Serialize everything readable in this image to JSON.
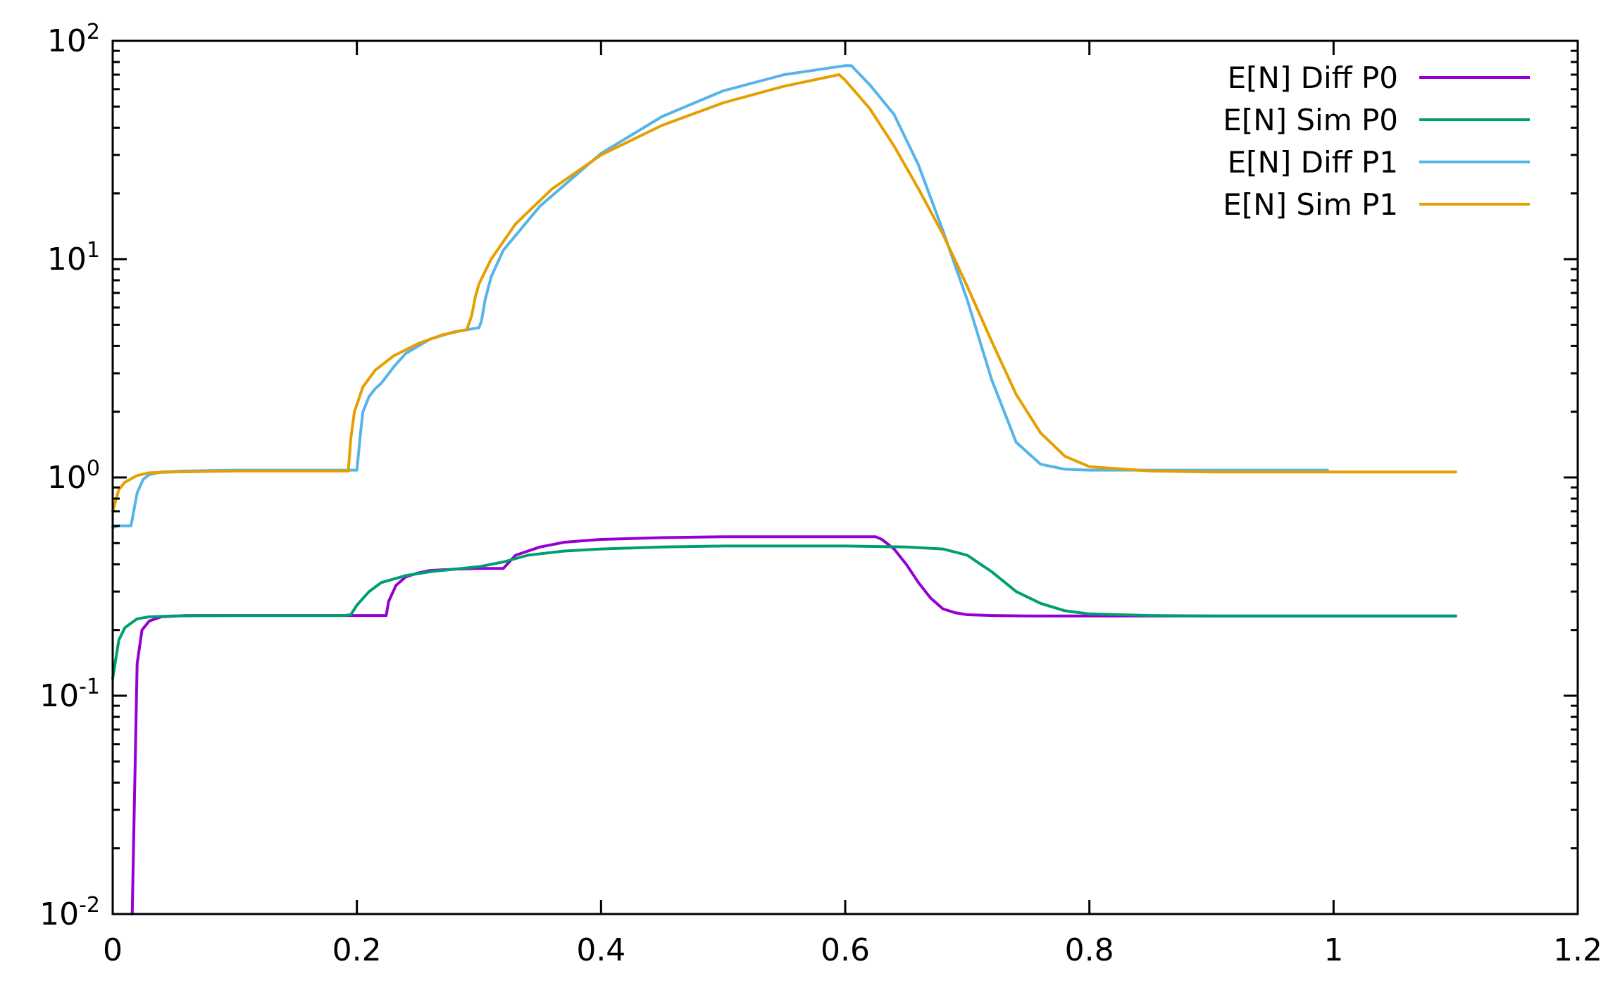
{
  "chart_data": {
    "type": "line",
    "title": "",
    "xlabel": "",
    "ylabel": "",
    "xlim": [
      0,
      1.2
    ],
    "ylim": [
      0.01,
      100
    ],
    "y_scale": "log",
    "grid": false,
    "legend_position": "top-right",
    "x_ticks": [
      {
        "value": 0,
        "label": "0"
      },
      {
        "value": 0.2,
        "label": "0.2"
      },
      {
        "value": 0.4,
        "label": "0.4"
      },
      {
        "value": 0.6,
        "label": "0.6"
      },
      {
        "value": 0.8,
        "label": "0.8"
      },
      {
        "value": 1,
        "label": "1"
      },
      {
        "value": 1.2,
        "label": "1.2"
      }
    ],
    "y_ticks": [
      {
        "value": 0.01,
        "base": "10",
        "exp": "-2"
      },
      {
        "value": 0.1,
        "base": "10",
        "exp": "-1"
      },
      {
        "value": 1,
        "base": "10",
        "exp": "0"
      },
      {
        "value": 10,
        "base": "10",
        "exp": "1"
      },
      {
        "value": 100,
        "base": "10",
        "exp": "2"
      }
    ],
    "series": [
      {
        "name": "E[N] Diff P0",
        "color": "#9400d3",
        "x": [
          0.016,
          0.02,
          0.024,
          0.03,
          0.04,
          0.06,
          0.1,
          0.15,
          0.2,
          0.224,
          0.226,
          0.232,
          0.24,
          0.25,
          0.26,
          0.28,
          0.3,
          0.32,
          0.323,
          0.33,
          0.35,
          0.37,
          0.4,
          0.45,
          0.5,
          0.55,
          0.6,
          0.625,
          0.63,
          0.64,
          0.65,
          0.66,
          0.67,
          0.68,
          0.69,
          0.7,
          0.72,
          0.75,
          0.8,
          0.85,
          0.9,
          0.95,
          1.0,
          1.05,
          1.1
        ],
        "y": [
          0.01,
          0.14,
          0.2,
          0.22,
          0.23,
          0.233,
          0.233,
          0.233,
          0.233,
          0.233,
          0.27,
          0.32,
          0.35,
          0.365,
          0.375,
          0.38,
          0.383,
          0.383,
          0.4,
          0.44,
          0.48,
          0.505,
          0.52,
          0.53,
          0.535,
          0.535,
          0.535,
          0.535,
          0.52,
          0.47,
          0.4,
          0.33,
          0.28,
          0.25,
          0.24,
          0.235,
          0.233,
          0.232,
          0.232,
          0.232,
          0.232,
          0.232,
          0.232,
          0.232,
          0.232
        ]
      },
      {
        "name": "E[N] Sim P0",
        "color": "#009e73",
        "x": [
          0.0,
          0.005,
          0.01,
          0.02,
          0.03,
          0.05,
          0.1,
          0.15,
          0.19,
          0.195,
          0.2,
          0.21,
          0.22,
          0.24,
          0.26,
          0.28,
          0.3,
          0.32,
          0.34,
          0.37,
          0.4,
          0.45,
          0.5,
          0.55,
          0.6,
          0.65,
          0.68,
          0.7,
          0.72,
          0.74,
          0.76,
          0.78,
          0.8,
          0.85,
          0.9,
          0.95,
          1.0,
          1.05,
          1.1
        ],
        "y": [
          0.12,
          0.18,
          0.205,
          0.225,
          0.23,
          0.232,
          0.233,
          0.233,
          0.233,
          0.235,
          0.26,
          0.3,
          0.33,
          0.355,
          0.37,
          0.38,
          0.39,
          0.41,
          0.44,
          0.46,
          0.47,
          0.48,
          0.485,
          0.485,
          0.485,
          0.48,
          0.47,
          0.44,
          0.37,
          0.3,
          0.265,
          0.245,
          0.237,
          0.233,
          0.232,
          0.232,
          0.232,
          0.232,
          0.232
        ]
      },
      {
        "name": "E[N] Diff P1",
        "color": "#56b4e9",
        "x": [
          0.0,
          0.005,
          0.015,
          0.02,
          0.025,
          0.03,
          0.04,
          0.06,
          0.1,
          0.15,
          0.2,
          0.203,
          0.205,
          0.21,
          0.215,
          0.22,
          0.23,
          0.24,
          0.26,
          0.28,
          0.3,
          0.302,
          0.305,
          0.31,
          0.32,
          0.35,
          0.4,
          0.45,
          0.5,
          0.55,
          0.6,
          0.605,
          0.62,
          0.64,
          0.66,
          0.68,
          0.7,
          0.72,
          0.74,
          0.76,
          0.78,
          0.8,
          0.85,
          0.9,
          0.95,
          0.995
        ],
        "y": [
          0.59,
          0.6,
          0.6,
          0.85,
          0.98,
          1.03,
          1.06,
          1.07,
          1.08,
          1.08,
          1.08,
          1.6,
          2.0,
          2.35,
          2.55,
          2.7,
          3.2,
          3.7,
          4.3,
          4.65,
          4.85,
          5.2,
          6.5,
          8.3,
          11.0,
          17.5,
          30.5,
          45.0,
          59.0,
          70.0,
          77.0,
          77.0,
          63.0,
          46.0,
          27.0,
          13.5,
          6.5,
          2.8,
          1.45,
          1.15,
          1.09,
          1.08,
          1.08,
          1.08,
          1.08,
          1.08
        ]
      },
      {
        "name": "E[N] Sim P1",
        "color": "#e69f00",
        "x": [
          0.0,
          0.005,
          0.01,
          0.02,
          0.03,
          0.05,
          0.1,
          0.15,
          0.193,
          0.195,
          0.198,
          0.205,
          0.215,
          0.23,
          0.25,
          0.27,
          0.29,
          0.294,
          0.297,
          0.3,
          0.31,
          0.33,
          0.36,
          0.4,
          0.45,
          0.5,
          0.55,
          0.595,
          0.6,
          0.62,
          0.64,
          0.66,
          0.68,
          0.7,
          0.72,
          0.74,
          0.76,
          0.78,
          0.8,
          0.85,
          0.9,
          0.95,
          1.0,
          1.05,
          1.1
        ],
        "y": [
          0.7,
          0.88,
          0.95,
          1.02,
          1.05,
          1.06,
          1.07,
          1.07,
          1.07,
          1.5,
          2.0,
          2.6,
          3.1,
          3.6,
          4.1,
          4.5,
          4.75,
          5.5,
          6.7,
          7.7,
          10.0,
          14.5,
          21.0,
          30.0,
          41.0,
          52.0,
          62.0,
          70.0,
          66.0,
          49.0,
          33.0,
          21.0,
          13.0,
          7.5,
          4.2,
          2.4,
          1.6,
          1.25,
          1.12,
          1.07,
          1.06,
          1.06,
          1.06,
          1.06,
          1.06
        ]
      }
    ]
  }
}
